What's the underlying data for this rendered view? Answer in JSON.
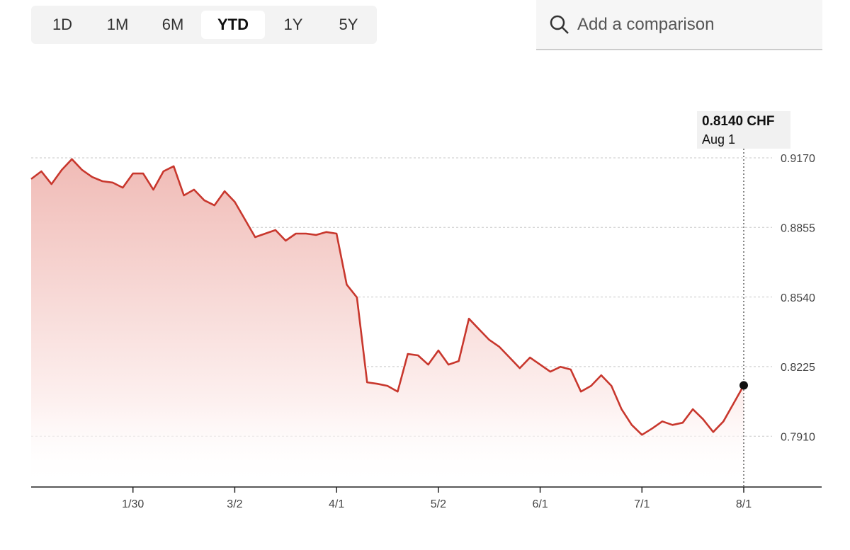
{
  "ui": {
    "ranges": [
      "1D",
      "1M",
      "6M",
      "YTD",
      "1Y",
      "5Y"
    ],
    "selected_range": 3,
    "search_placeholder": "Add a comparison"
  },
  "chart_data": {
    "type": "area",
    "annotations": [
      "0.8140 CHF",
      "Aug 1"
    ],
    "categories": [
      null,
      null,
      null,
      null,
      null,
      null,
      null,
      null,
      null,
      null,
      "1/30",
      null,
      null,
      null,
      null,
      null,
      null,
      null,
      null,
      null,
      "3/2",
      null,
      null,
      null,
      null,
      null,
      null,
      null,
      null,
      null,
      "4/1",
      null,
      null,
      null,
      null,
      null,
      null,
      null,
      null,
      null,
      "5/2",
      null,
      null,
      null,
      null,
      null,
      null,
      null,
      null,
      null,
      "6/1",
      null,
      null,
      null,
      null,
      null,
      null,
      null,
      null,
      null,
      "7/1",
      null,
      null,
      null,
      null,
      null,
      null,
      null,
      null,
      null,
      "8/1"
    ],
    "series": [
      {
        "color": "#c8372d",
        "values": [
          0.9074,
          0.9109,
          0.9051,
          0.9115,
          0.9164,
          0.9115,
          0.9083,
          0.9064,
          0.9058,
          0.9035,
          0.9099,
          0.9099,
          0.9026,
          0.9109,
          0.9132,
          0.9,
          0.9026,
          0.8978,
          0.8955,
          0.9019,
          0.8971,
          0.8891,
          0.8811,
          0.8827,
          0.8843,
          0.8795,
          0.8827,
          0.8827,
          0.8821,
          0.8834,
          0.8827,
          0.8596,
          0.8538,
          0.8154,
          0.8147,
          0.8138,
          0.8112,
          0.8282,
          0.8276,
          0.8234,
          0.8298,
          0.8234,
          0.825,
          0.8442,
          0.8394,
          0.8346,
          0.8314,
          0.8266,
          0.8218,
          0.8266,
          0.8234,
          0.8202,
          0.8224,
          0.8212,
          0.8112,
          0.8138,
          0.8186,
          0.8138,
          0.8032,
          0.7961,
          0.7916,
          0.7945,
          0.7977,
          0.7961,
          0.7971,
          0.8032,
          0.7987,
          0.7929,
          0.7977,
          0.8058,
          0.814
        ]
      }
    ],
    "ylim": [
      0.768,
      0.92
    ],
    "yticks": [
      {
        "value": 0.917,
        "label": "0.9170"
      },
      0.8855,
      {
        "value": 0.854,
        "label": "0.8540"
      },
      0.8225,
      {
        "value": 0.791,
        "label": "0.7910"
      }
    ],
    "grid": true
  }
}
